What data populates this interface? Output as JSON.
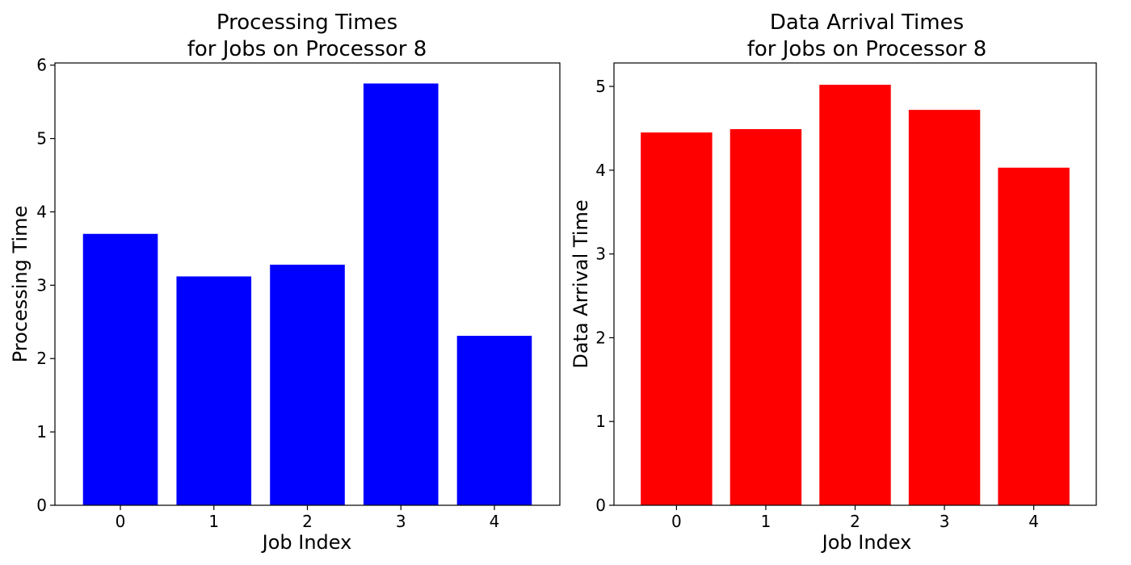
{
  "chart_data": [
    {
      "type": "bar",
      "title_lines": [
        "Processing Times",
        "for Jobs on Processor 8"
      ],
      "xlabel": "Job Index",
      "ylabel": "Processing Time",
      "categories": [
        "0",
        "1",
        "2",
        "3",
        "4"
      ],
      "values": [
        3.7,
        3.12,
        3.28,
        5.75,
        2.31
      ],
      "ylim": [
        0,
        6.03
      ],
      "yticks": [
        0,
        1,
        2,
        3,
        4,
        5,
        6
      ],
      "color": "#0000ff",
      "grid": false,
      "legend": "none"
    },
    {
      "type": "bar",
      "title_lines": [
        "Data Arrival Times",
        "for Jobs on Processor 8"
      ],
      "xlabel": "Job Index",
      "ylabel": "Data Arrival Time",
      "categories": [
        "0",
        "1",
        "2",
        "3",
        "4"
      ],
      "values": [
        4.45,
        4.49,
        5.02,
        4.72,
        4.03
      ],
      "ylim": [
        0,
        5.28
      ],
      "yticks": [
        0,
        1,
        2,
        3,
        4,
        5
      ],
      "color": "#ff0000",
      "grid": false,
      "legend": "none"
    }
  ]
}
